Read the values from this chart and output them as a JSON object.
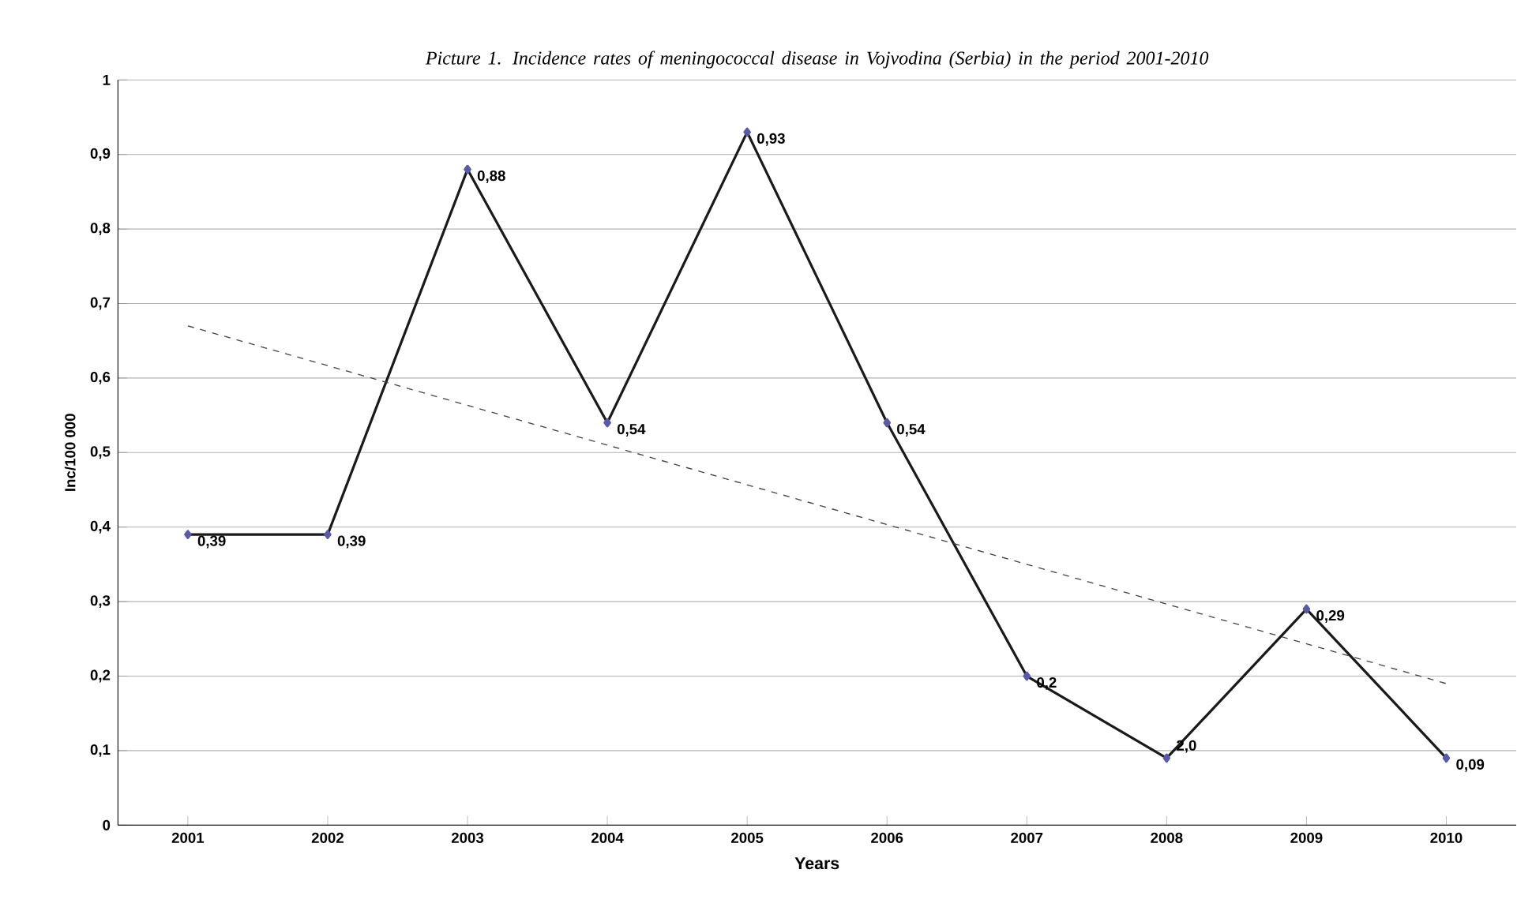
{
  "chart_data": {
    "type": "line",
    "title": "*Picture 1. Incidence rates of meningococcal disease in Vojvodina (Serbia) in the period 2001-2010*",
    "xlabel": "Years",
    "ylabel": "Inc/100 000",
    "x": [
      2001,
      2002,
      2003,
      2004,
      2005,
      2006,
      2007,
      2008,
      2009,
      2010
    ],
    "xlim": [
      2000.5,
      2010.5
    ],
    "xticks": [
      2001,
      2002,
      2003,
      2004,
      2005,
      2006,
      2007,
      2008,
      2009,
      2010
    ],
    "ylim": [
      0,
      1
    ],
    "yticks": [
      {
        "value": 0,
        "label": "0"
      },
      {
        "value": 0.1,
        "label": "0,1"
      },
      {
        "value": 0.2,
        "label": "0,2"
      },
      {
        "value": 0.3,
        "label": "0,3"
      },
      {
        "value": 0.4,
        "label": "0,4"
      },
      {
        "value": 0.5,
        "label": "0,5"
      },
      {
        "value": 0.6,
        "label": "0,6"
      },
      {
        "value": 0.7,
        "label": "0,7"
      },
      {
        "value": 0.8,
        "label": "0,8"
      },
      {
        "value": 0.9,
        "label": "0,9"
      },
      {
        "value": 1,
        "label": "1"
      }
    ],
    "grid": "y",
    "marker": "diamond",
    "annotations": [
      {
        "text": "2,0",
        "x": 2008,
        "y": 0.09
      }
    ],
    "series": [
      {
        "color": "#1a1a1a",
        "values": [
          0.39,
          0.39,
          0.88,
          0.54,
          0.93,
          0.54,
          0.2,
          0.09,
          0.29,
          0.09
        ],
        "value_labels": [
          "0,39",
          "0,39",
          "0,88",
          "0,54",
          "0,93",
          "0,54",
          "0,2",
          null,
          "0,29",
          "0,09"
        ]
      },
      {
        "type": "line",
        "color": "#444444",
        "line_style": "dashed",
        "marker": "none",
        "x": [
          2001,
          2010
        ],
        "values": [
          0.67,
          0.19
        ]
      }
    ]
  }
}
